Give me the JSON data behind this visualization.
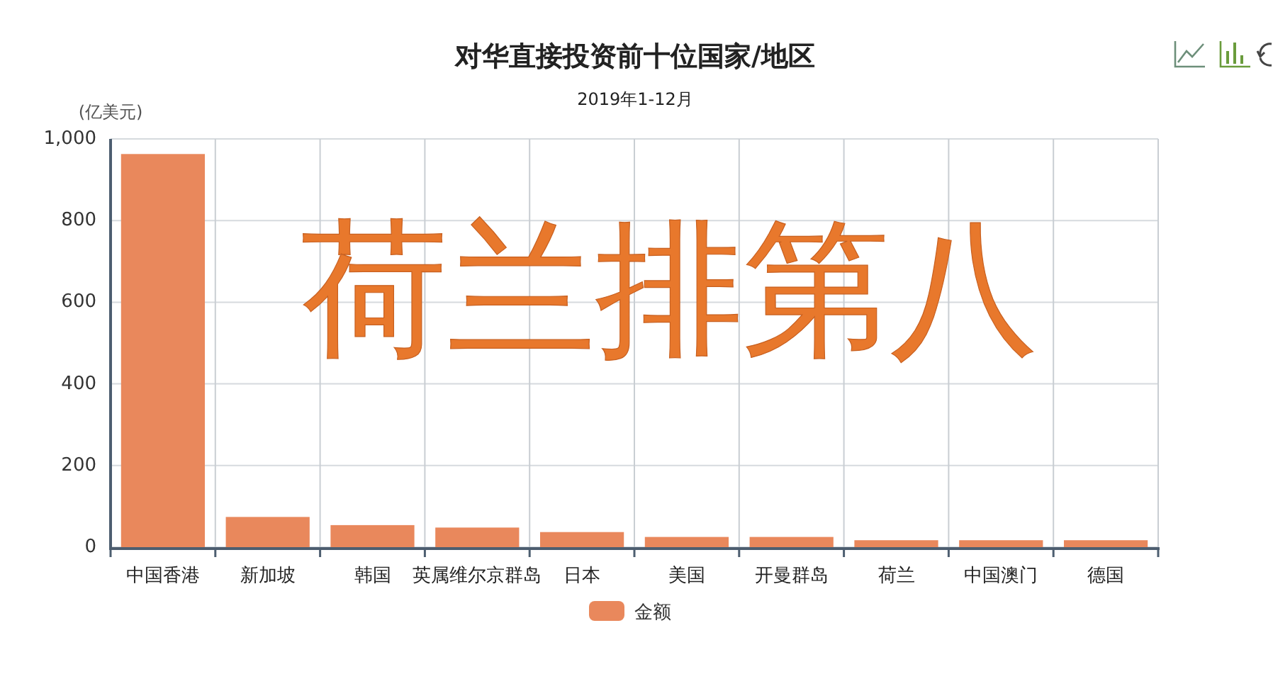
{
  "chart_data": {
    "type": "bar",
    "title": "对华直接投资前十位国家/地区",
    "subtitle": "2019年1-12月",
    "ylabel": "(亿美元)",
    "categories": [
      "中国香港",
      "新加坡",
      "韩国",
      "英属维尔京群岛",
      "日本",
      "美国",
      "开曼群岛",
      "荷兰",
      "中国澳门",
      "德国"
    ],
    "series": [
      {
        "name": "金额",
        "color": "#e9885c",
        "values": [
          963,
          74,
          54,
          48,
          37,
          25,
          25,
          17,
          17,
          17
        ]
      }
    ],
    "ylim": [
      0,
      1000
    ],
    "yticks": [
      0,
      200,
      400,
      600,
      800,
      {
        "value": 1000,
        "label": "1,000"
      }
    ],
    "grid": true,
    "legend": "bottom",
    "annotations": [
      "荷兰排第八"
    ]
  }
}
